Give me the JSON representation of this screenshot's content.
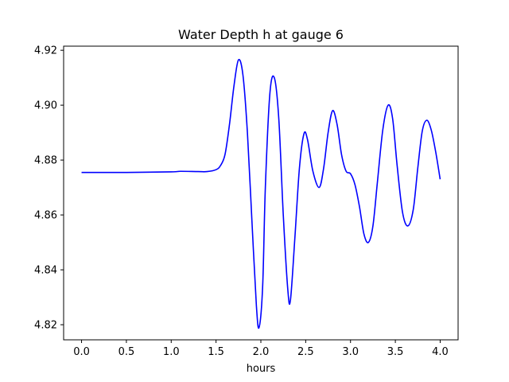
{
  "chart_data": {
    "type": "line",
    "title": "Water Depth h at gauge 6",
    "xlabel": "hours",
    "ylabel": "",
    "xlim": [
      -0.2,
      4.2
    ],
    "ylim": [
      4.8145,
      4.9215
    ],
    "xticks": [
      0.0,
      0.5,
      1.0,
      1.5,
      2.0,
      2.5,
      3.0,
      3.5,
      4.0
    ],
    "xtick_labels": [
      "0.0",
      "0.5",
      "1.0",
      "1.5",
      "2.0",
      "2.5",
      "3.0",
      "3.5",
      "4.0"
    ],
    "yticks": [
      4.82,
      4.84,
      4.86,
      4.88,
      4.9,
      4.92
    ],
    "ytick_labels": [
      "4.82",
      "4.84",
      "4.86",
      "4.88",
      "4.90",
      "4.92"
    ],
    "grid": false,
    "legend": "none",
    "series": [
      {
        "color": "#0000ff",
        "x": [
          0.0,
          0.5,
          1.0,
          1.1,
          1.3,
          1.4,
          1.5,
          1.55,
          1.6,
          1.65,
          1.7,
          1.75,
          1.8,
          1.85,
          1.9,
          1.95,
          1.98,
          2.02,
          2.05,
          2.1,
          2.15,
          2.2,
          2.25,
          2.3,
          2.33,
          2.38,
          2.43,
          2.48,
          2.52,
          2.58,
          2.65,
          2.7,
          2.75,
          2.8,
          2.85,
          2.9,
          2.95,
          3.0,
          3.05,
          3.1,
          3.15,
          3.2,
          3.25,
          3.3,
          3.36,
          3.42,
          3.47,
          3.52,
          3.58,
          3.64,
          3.7,
          3.75,
          3.8,
          3.85,
          3.9,
          3.95,
          4.0
        ],
        "y": [
          4.8755,
          4.8755,
          4.8757,
          4.8759,
          4.8758,
          4.8758,
          4.8765,
          4.878,
          4.882,
          4.893,
          4.907,
          4.9165,
          4.911,
          4.89,
          4.858,
          4.827,
          4.819,
          4.834,
          4.87,
          4.904,
          4.91,
          4.895,
          4.86,
          4.833,
          4.829,
          4.852,
          4.877,
          4.8895,
          4.8875,
          4.876,
          4.87,
          4.877,
          4.89,
          4.898,
          4.893,
          4.882,
          4.876,
          4.875,
          4.871,
          4.863,
          4.853,
          4.85,
          4.856,
          4.872,
          4.891,
          4.9,
          4.895,
          4.878,
          4.861,
          4.856,
          4.862,
          4.877,
          4.8905,
          4.8945,
          4.891,
          4.883,
          4.873
        ]
      }
    ]
  }
}
